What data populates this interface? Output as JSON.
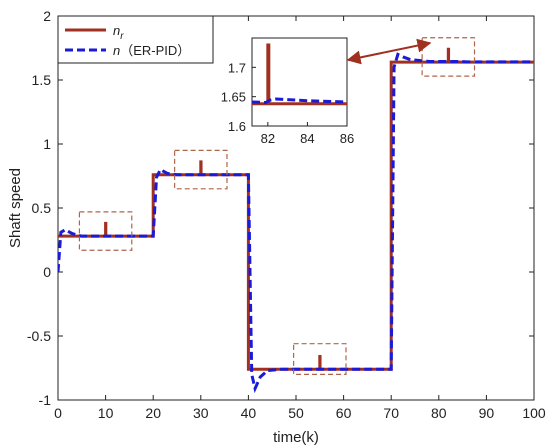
{
  "chart_data": {
    "type": "line",
    "xlabel": "time(k)",
    "ylabel": "Shaft speed",
    "xlim": [
      0,
      100
    ],
    "ylim": [
      -1,
      2
    ],
    "xticks": [
      0,
      10,
      20,
      30,
      40,
      50,
      60,
      70,
      80,
      90,
      100
    ],
    "yticks": [
      -1,
      -0.5,
      0,
      0.5,
      1,
      1.5,
      2
    ],
    "grid": false,
    "legend_position": "top-left",
    "series": [
      {
        "name": "n_r",
        "label_main": "n",
        "label_sub": "r",
        "color": "#a0301f",
        "dash": "solid",
        "x": [
          0,
          10,
          10,
          10.05,
          10.05,
          20,
          20,
          30,
          30,
          30.05,
          30.05,
          40,
          40,
          55,
          55,
          55.05,
          55.05,
          70,
          70,
          82,
          82,
          82.05,
          82.05,
          100
        ],
        "y": [
          0.28,
          0.28,
          0.38,
          0.38,
          0.28,
          0.28,
          0.76,
          0.76,
          0.86,
          0.86,
          0.76,
          0.76,
          -0.76,
          -0.76,
          -0.66,
          -0.66,
          -0.76,
          -0.76,
          1.64,
          1.64,
          1.74,
          1.74,
          1.64,
          1.64
        ]
      },
      {
        "name": "n (ER-PID)",
        "label_main": "n",
        "label_rest": "（ER-PID）",
        "color": "#1a1ad9",
        "dash": "dashed",
        "x": [
          0,
          0.6,
          1.5,
          3,
          5,
          10,
          20,
          20.7,
          21.5,
          23,
          25,
          30,
          40,
          40.7,
          41.4,
          42.5,
          44,
          47,
          55,
          70,
          70.6,
          71.4,
          72.5,
          74,
          78,
          82,
          84,
          86,
          100
        ],
        "y": [
          0.0,
          0.31,
          0.33,
          0.3,
          0.28,
          0.28,
          0.28,
          0.74,
          0.8,
          0.77,
          0.76,
          0.76,
          0.76,
          -0.8,
          -0.91,
          -0.82,
          -0.77,
          -0.76,
          -0.76,
          -0.76,
          1.6,
          1.7,
          1.68,
          1.66,
          1.645,
          1.645,
          1.645,
          1.642,
          1.642
        ]
      }
    ],
    "highlight_boxes": [
      {
        "x": [
          4.5,
          15.5
        ],
        "y": [
          0.17,
          0.47
        ]
      },
      {
        "x": [
          24.5,
          35.5
        ],
        "y": [
          0.65,
          0.95
        ]
      },
      {
        "x": [
          49.5,
          60.5
        ],
        "y": [
          -0.8,
          -0.56
        ]
      },
      {
        "x": [
          76.5,
          87.5
        ],
        "y": [
          1.53,
          1.83
        ]
      }
    ],
    "inset": {
      "xlim": [
        81.2,
        86
      ],
      "ylim": [
        1.6,
        1.75
      ],
      "xticks": [
        82,
        84,
        86
      ],
      "yticks": [
        1.6,
        1.65,
        1.7
      ],
      "ytick_labels": [
        "1.6",
        "1.65",
        "1.7"
      ],
      "series": [
        {
          "color": "#a0301f",
          "dash": "solid",
          "x": [
            81.2,
            82,
            82,
            82.05,
            82.05,
            86
          ],
          "y": [
            1.638,
            1.638,
            1.738,
            1.738,
            1.638,
            1.638
          ]
        },
        {
          "color": "#1a1ad9",
          "dash": "dashed",
          "x": [
            81.2,
            81.9,
            82.1,
            82.4,
            83,
            84,
            85,
            86
          ],
          "y": [
            1.641,
            1.64,
            1.644,
            1.646,
            1.645,
            1.643,
            1.642,
            1.641
          ]
        }
      ]
    }
  }
}
